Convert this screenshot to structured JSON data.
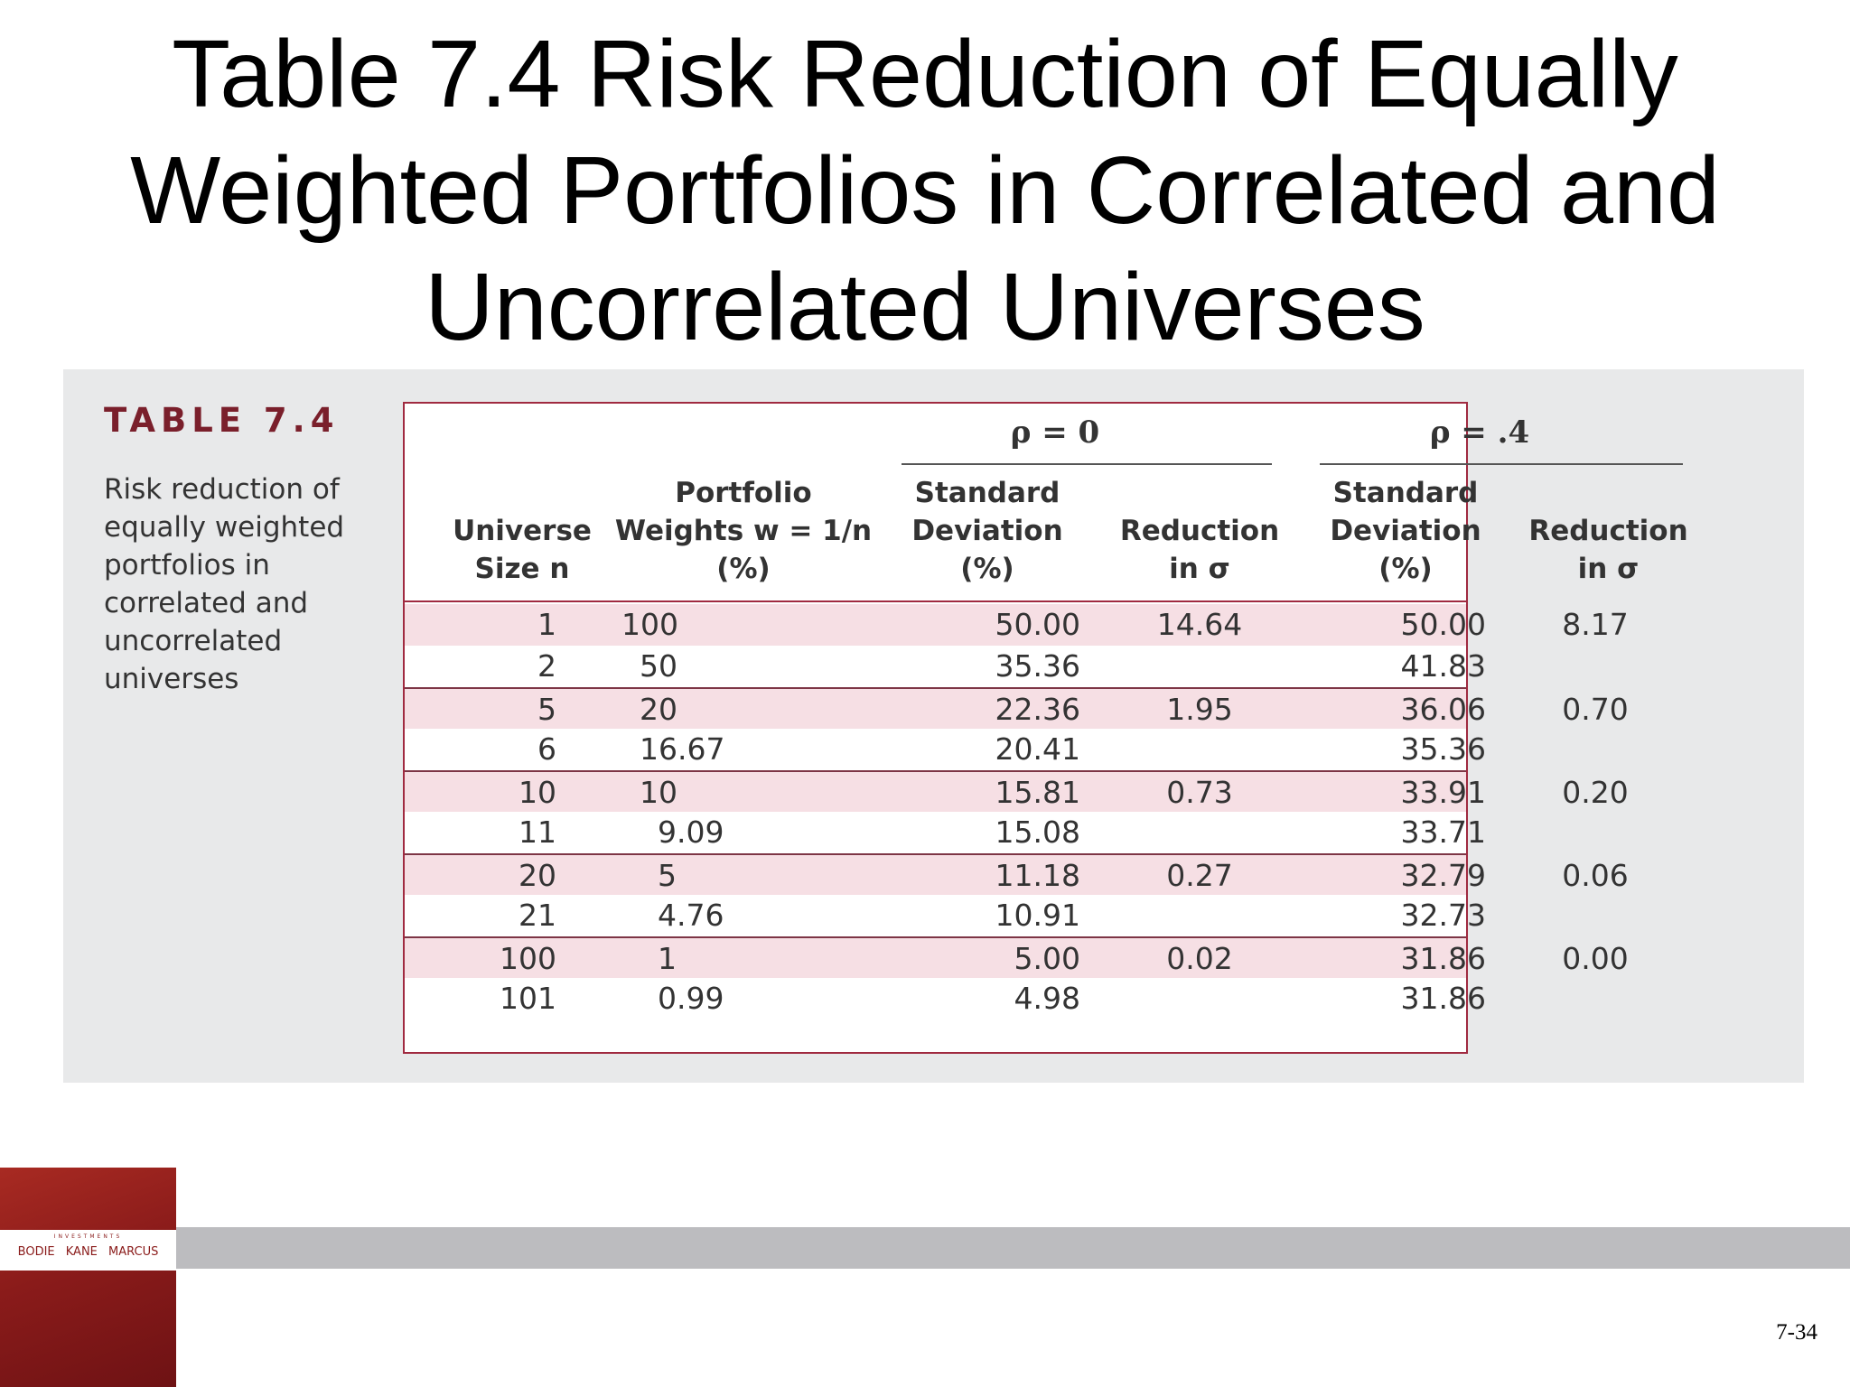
{
  "title_lines": [
    "Table 7.4 Risk Reduction of Equally",
    "Weighted Portfolios in Correlated and",
    "Uncorrelated Universes"
  ],
  "caption": {
    "label": "TABLE 7.4",
    "lines": [
      "Risk reduction of",
      "equally weighted",
      "portfolios in",
      "correlated and",
      "uncorrelated",
      "universes"
    ]
  },
  "table": {
    "group_headers": [
      "ρ = 0",
      "ρ = .4"
    ],
    "columns": [
      [
        "Universe",
        "Size n"
      ],
      [
        "Portfolio",
        "Weights w = 1/n",
        "(%)"
      ],
      [
        "Standard",
        "Deviation",
        "(%)"
      ],
      [
        "Reduction",
        "in σ"
      ],
      [
        "Standard",
        "Deviation",
        "(%)"
      ],
      [
        "Reduction",
        "in σ"
      ]
    ],
    "rows": [
      [
        "1",
        "100",
        "50.00",
        "14.64",
        "50.00",
        "8.17"
      ],
      [
        "2",
        "50",
        "35.36",
        "",
        "41.83",
        ""
      ],
      [
        "5",
        "20",
        "22.36",
        "1.95",
        "36.06",
        "0.70"
      ],
      [
        "6",
        "16.67",
        "20.41",
        "",
        "35.36",
        ""
      ],
      [
        "10",
        "10",
        "15.81",
        "0.73",
        "33.91",
        "0.20"
      ],
      [
        "11",
        "9.09",
        "15.08",
        "",
        "33.71",
        ""
      ],
      [
        "20",
        "5",
        "11.18",
        "0.27",
        "32.79",
        "0.06"
      ],
      [
        "21",
        "4.76",
        "10.91",
        "",
        "32.73",
        ""
      ],
      [
        "100",
        "1",
        "5.00",
        "0.02",
        "31.86",
        "0.00"
      ],
      [
        "101",
        "0.99",
        "4.98",
        "",
        "31.86",
        ""
      ]
    ]
  },
  "book": {
    "series": "INVESTMENTS",
    "authors": "BODIE KANE MARCUS"
  },
  "page_number": "7-34"
}
